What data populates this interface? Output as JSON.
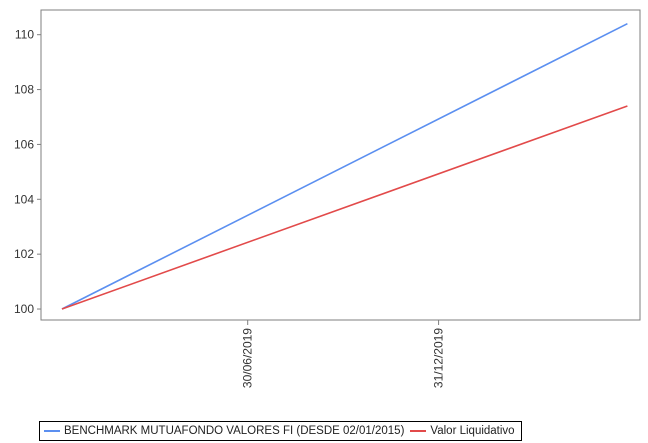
{
  "chart_data": {
    "type": "line",
    "x": [
      "2019-01-02",
      "2020-06-30"
    ],
    "x_ticks": [
      "30/06/2019",
      "31/12/2019"
    ],
    "x_tick_dates": [
      "2019-06-30",
      "2019-12-31"
    ],
    "xlim": [
      "2019-01-02",
      "2020-06-30"
    ],
    "ylim": [
      99.6,
      110.9
    ],
    "y_ticks": [
      "100",
      "102",
      "104",
      "106",
      "108",
      "110"
    ],
    "y_tick_values": [
      100,
      102,
      104,
      106,
      108,
      110
    ],
    "grid": false,
    "legend_position": "bottom",
    "series": [
      {
        "name": "BENCHMARK MUTUAFONDO VALORES FI (DESDE 02/01/2015)",
        "color": "#5B8FF0",
        "values": [
          100,
          110.4
        ]
      },
      {
        "name": "Valor Liquidativo",
        "color": "#E24A4A",
        "values": [
          100,
          107.4
        ]
      }
    ]
  }
}
